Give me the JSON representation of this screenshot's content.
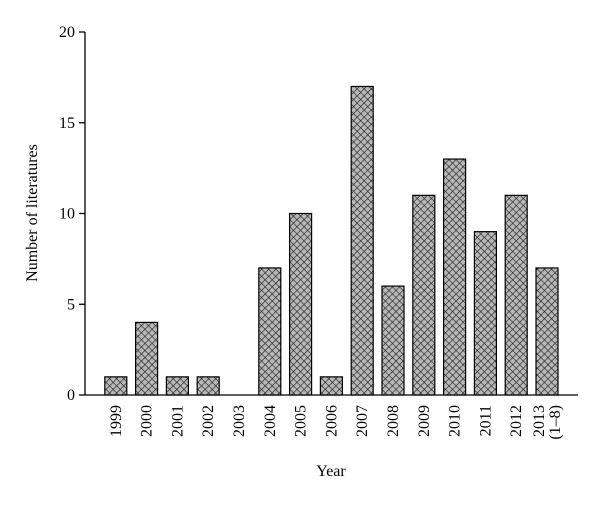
{
  "chart_data": {
    "type": "bar",
    "x_label": "Year",
    "y_label": "Number of literatures",
    "categories": [
      "1999",
      "2000",
      "2001",
      "2002",
      "2003",
      "2004",
      "2005",
      "2006",
      "2007",
      "2008",
      "2009",
      "2010",
      "2011",
      "2012",
      "2013 (1–8)"
    ],
    "values": [
      1,
      4,
      1,
      1,
      0,
      7,
      10,
      1,
      17,
      6,
      11,
      13,
      9,
      11,
      7
    ],
    "color": "#b8b8b8",
    "ylim": [
      0,
      20
    ],
    "yticks": [
      0,
      5,
      10,
      15,
      20
    ]
  }
}
